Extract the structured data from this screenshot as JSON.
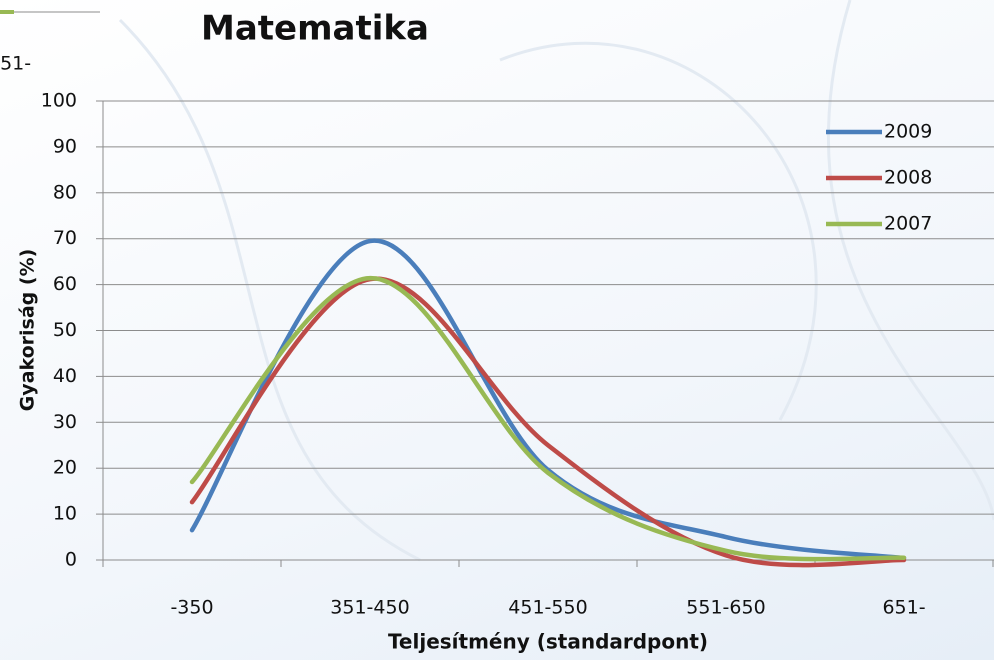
{
  "cropped_chart": {
    "x_label": "651-"
  },
  "chart_data": {
    "type": "line",
    "title": "Matematika",
    "x_label": "Teljesítmény (standardpont)",
    "y_label": "Gyakoriság (%)",
    "categories": [
      "-350",
      "351-450",
      "451-550",
      "551-650",
      "651-"
    ],
    "series": [
      {
        "name": "2009",
        "color": "#4a7ebb",
        "values": [
          6.5,
          69.5,
          19.6,
          5,
          0.4
        ]
      },
      {
        "name": "2008",
        "color": "#be4b48",
        "values": [
          12.6,
          61.2,
          25,
          1,
          0
        ]
      },
      {
        "name": "2007",
        "color": "#98b954",
        "values": [
          17,
          61.4,
          19,
          2,
          0.5
        ]
      }
    ],
    "ylim": [
      0,
      100
    ],
    "yticks": [
      0,
      10,
      20,
      30,
      40,
      50,
      60,
      70,
      80,
      90,
      100
    ],
    "grid": true,
    "smooth": true,
    "legend": "top-right"
  }
}
